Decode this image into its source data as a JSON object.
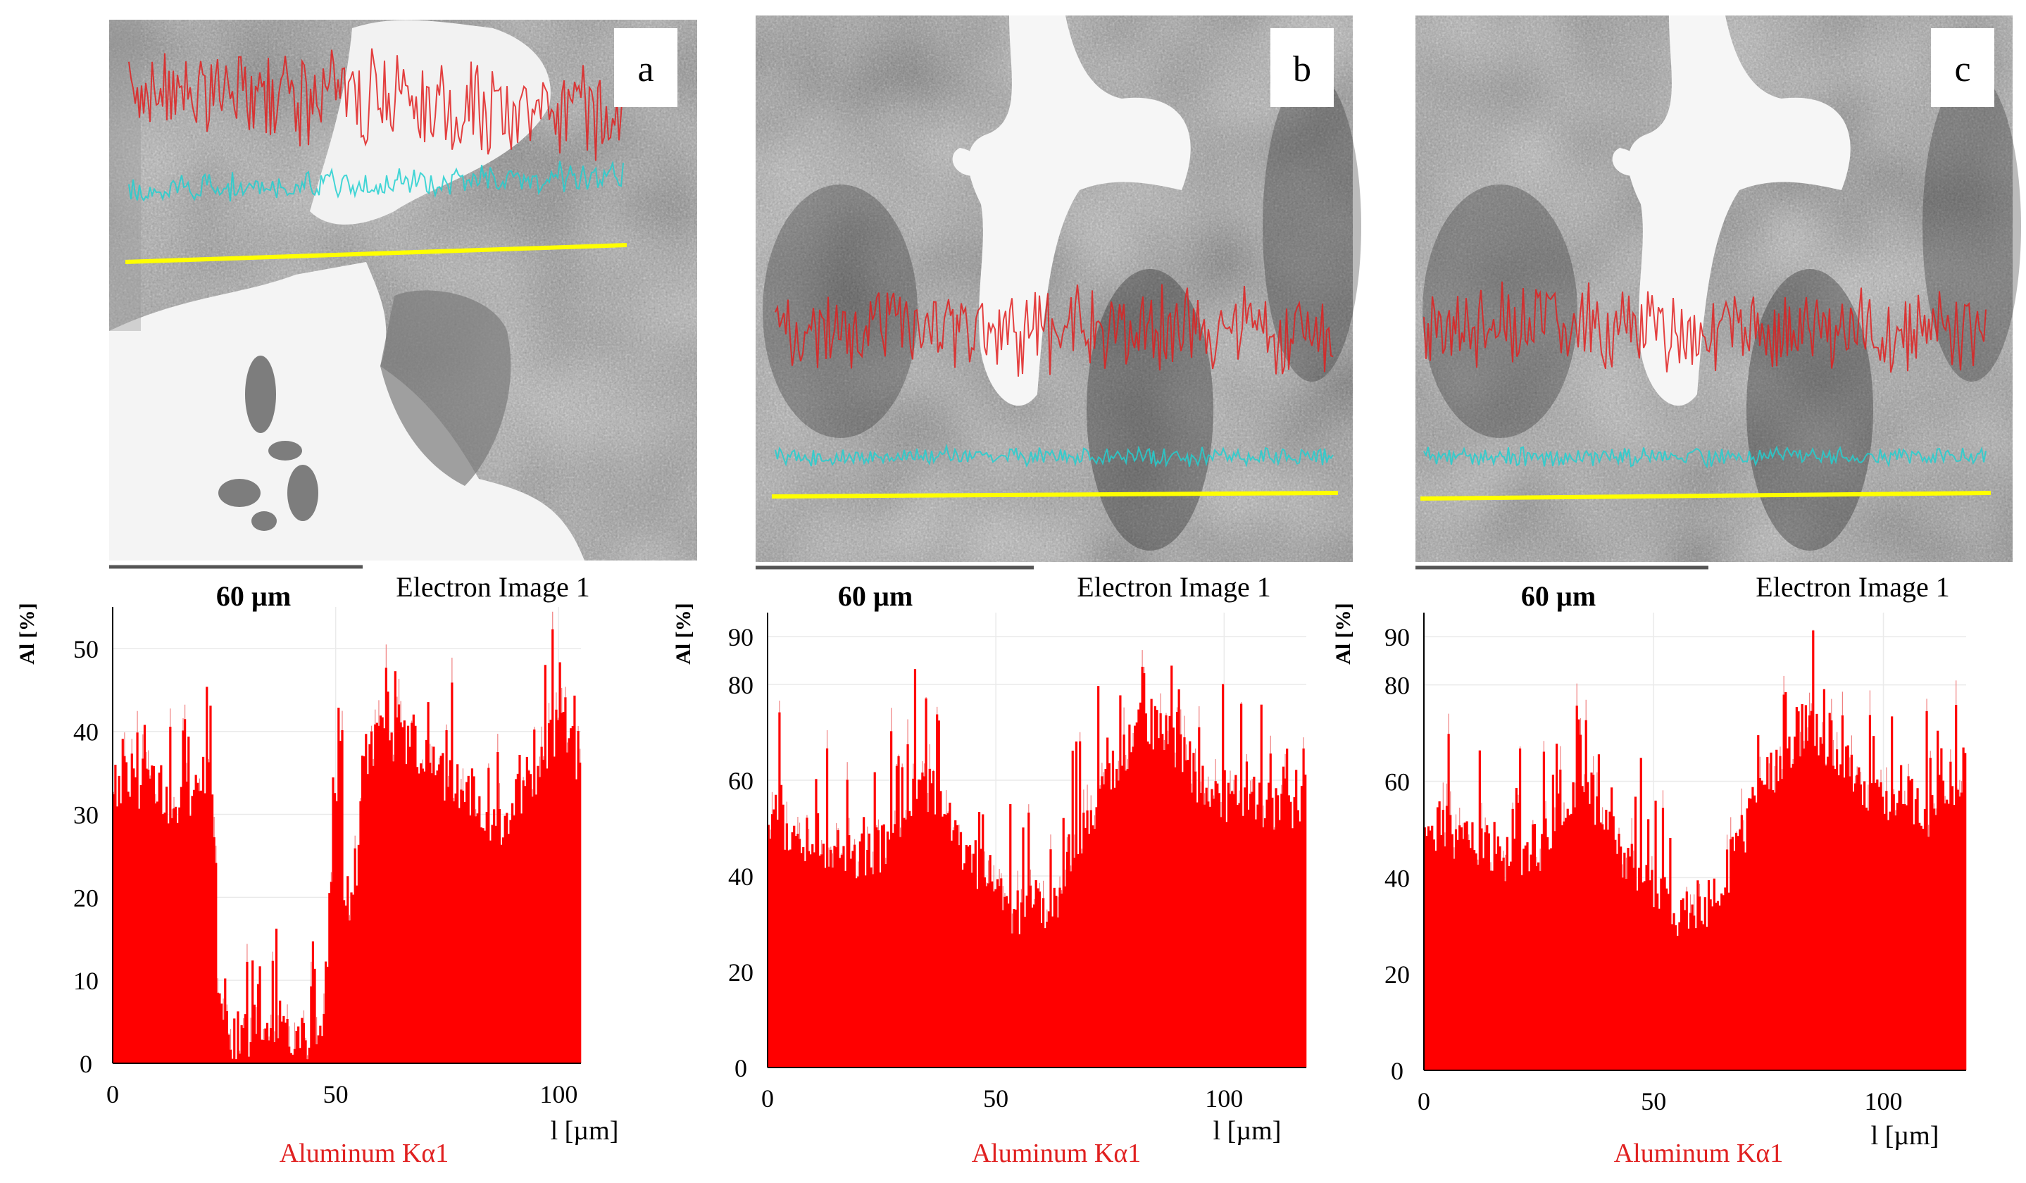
{
  "figure": {
    "panels": [
      {
        "panel_label": "a",
        "scale_bar_label": "60 µm",
        "image_caption": "Electron Image  1",
        "element_label": "Aluminum Kα1",
        "ylabel": "Al [%]",
        "xlabel": "l [µm]",
        "xlim": [
          0,
          105
        ],
        "ylim": [
          0,
          55
        ],
        "yticks": [
          0,
          10,
          20,
          30,
          40,
          50
        ],
        "xticks": [
          0,
          50,
          100
        ],
        "series_color": "#ff0000",
        "profile_anchors": [
          [
            0,
            33
          ],
          [
            8,
            34
          ],
          [
            15,
            30
          ],
          [
            21,
            36
          ],
          [
            22,
            42
          ],
          [
            23,
            15
          ],
          [
            25,
            3
          ],
          [
            35,
            3
          ],
          [
            44,
            3
          ],
          [
            47,
            3
          ],
          [
            49,
            22
          ],
          [
            51,
            40
          ],
          [
            52,
            20
          ],
          [
            54,
            15
          ],
          [
            56,
            36
          ],
          [
            62,
            40
          ],
          [
            68,
            38
          ],
          [
            75,
            34
          ],
          [
            82,
            32
          ],
          [
            86,
            28
          ],
          [
            92,
            33
          ],
          [
            96,
            36
          ],
          [
            100,
            40
          ],
          [
            104,
            37
          ]
        ]
      },
      {
        "panel_label": "b",
        "scale_bar_label": "60 µm",
        "image_caption": "Electron Image  1",
        "element_label": "Aluminum Kα1",
        "ylabel": "Al [%]",
        "xlabel": "l [µm]",
        "xlim": [
          0,
          118
        ],
        "ylim": [
          0,
          95
        ],
        "yticks": [
          0,
          20,
          40,
          60,
          80,
          90
        ],
        "xticks": [
          0,
          50,
          100
        ],
        "series_color": "#ff0000",
        "profile_anchors": [
          [
            0,
            52
          ],
          [
            10,
            48
          ],
          [
            20,
            44
          ],
          [
            28,
            48
          ],
          [
            33,
            60
          ],
          [
            38,
            56
          ],
          [
            42,
            46
          ],
          [
            48,
            40
          ],
          [
            55,
            32
          ],
          [
            60,
            34
          ],
          [
            65,
            38
          ],
          [
            72,
            56
          ],
          [
            78,
            66
          ],
          [
            84,
            72
          ],
          [
            90,
            66
          ],
          [
            96,
            58
          ],
          [
            104,
            56
          ],
          [
            110,
            54
          ],
          [
            118,
            56
          ]
        ]
      },
      {
        "panel_label": "c",
        "scale_bar_label": "60 µm",
        "image_caption": "Electron Image  1",
        "element_label": "Aluminum Kα1",
        "ylabel": "Al [%]",
        "xlabel": "l [µm]",
        "xlim": [
          0,
          118
        ],
        "ylim": [
          0,
          95
        ],
        "yticks": [
          0,
          20,
          40,
          60,
          80,
          90
        ],
        "xticks": [
          0,
          50,
          100
        ],
        "series_color": "#ff0000",
        "profile_anchors": [
          [
            0,
            52
          ],
          [
            10,
            48
          ],
          [
            20,
            44
          ],
          [
            28,
            48
          ],
          [
            33,
            60
          ],
          [
            38,
            56
          ],
          [
            42,
            46
          ],
          [
            48,
            40
          ],
          [
            55,
            32
          ],
          [
            60,
            34
          ],
          [
            65,
            38
          ],
          [
            72,
            56
          ],
          [
            78,
            66
          ],
          [
            84,
            72
          ],
          [
            90,
            66
          ],
          [
            96,
            58
          ],
          [
            104,
            56
          ],
          [
            110,
            54
          ],
          [
            118,
            56
          ]
        ]
      }
    ]
  },
  "chart_data": [
    {
      "type": "area",
      "title": "Electron Image  1",
      "xlabel": "l [µm]",
      "ylabel": "Al [%]",
      "series": [
        {
          "name": "Aluminum Kα1",
          "x": [
            0,
            8,
            15,
            21,
            22,
            23,
            25,
            35,
            44,
            47,
            49,
            51,
            52,
            54,
            56,
            62,
            68,
            75,
            82,
            86,
            92,
            96,
            100,
            104
          ],
          "values": [
            33,
            34,
            30,
            36,
            42,
            15,
            3,
            3,
            3,
            3,
            22,
            40,
            20,
            15,
            36,
            40,
            38,
            34,
            32,
            28,
            33,
            36,
            40,
            37
          ]
        }
      ],
      "xlim": [
        0,
        105
      ],
      "ylim": [
        0,
        55
      ]
    },
    {
      "type": "area",
      "title": "Electron Image  1",
      "xlabel": "l [µm]",
      "ylabel": "Al [%]",
      "series": [
        {
          "name": "Aluminum Kα1",
          "x": [
            0,
            10,
            20,
            28,
            33,
            38,
            42,
            48,
            55,
            60,
            65,
            72,
            78,
            84,
            90,
            96,
            104,
            110,
            118
          ],
          "values": [
            52,
            48,
            44,
            48,
            60,
            56,
            46,
            40,
            32,
            34,
            38,
            56,
            66,
            72,
            66,
            58,
            56,
            54,
            56
          ]
        }
      ],
      "xlim": [
        0,
        118
      ],
      "ylim": [
        0,
        95
      ]
    },
    {
      "type": "area",
      "title": "Electron Image  1",
      "xlabel": "l [µm]",
      "ylabel": "Al [%]",
      "series": [
        {
          "name": "Aluminum Kα1",
          "x": [
            0,
            10,
            20,
            28,
            33,
            38,
            42,
            48,
            55,
            60,
            65,
            72,
            78,
            84,
            90,
            96,
            104,
            110,
            118
          ],
          "values": [
            52,
            48,
            44,
            48,
            60,
            56,
            46,
            40,
            32,
            34,
            38,
            56,
            66,
            72,
            66,
            58,
            56,
            54,
            56
          ]
        }
      ],
      "xlim": [
        0,
        118
      ],
      "ylim": [
        0,
        95
      ]
    }
  ]
}
